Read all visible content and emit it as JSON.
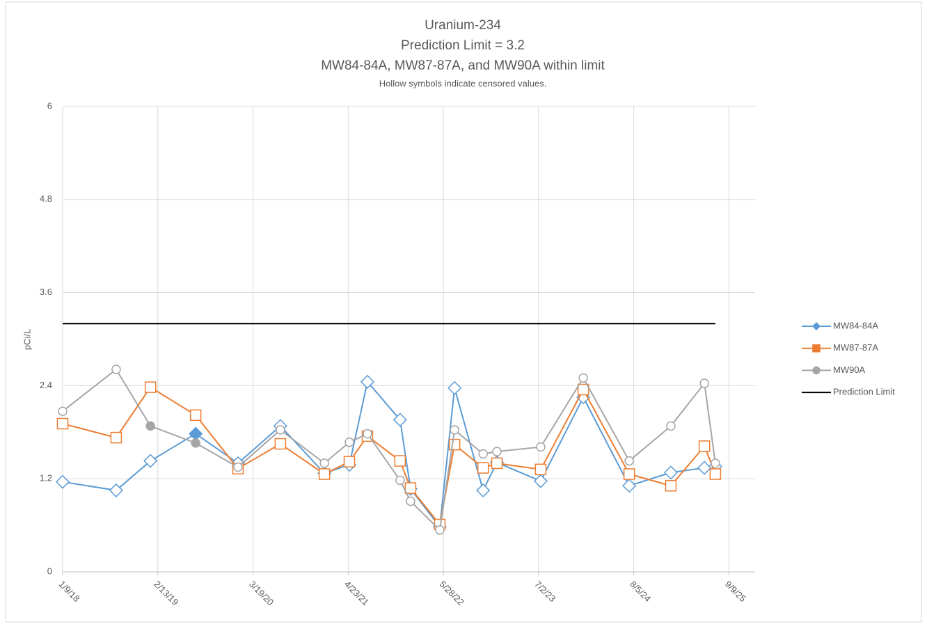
{
  "chart_data": {
    "type": "line",
    "title": "Uranium-234",
    "title_lines": [
      "Prediction Limit = 3.2",
      "MW84-84A, MW87-87A, and MW90A within limit"
    ],
    "subtitle": "Hollow symbols indicate censored values.",
    "y_label": "pCi/L",
    "x": [
      "2018-01-09",
      "2018-08-22",
      "2019-01-13",
      "2019-07-22",
      "2020-01-16",
      "2020-07-12",
      "2021-01-13",
      "2021-04-28",
      "2021-07-13",
      "2021-11-27",
      "2022-01-10",
      "2022-05-13",
      "2022-07-14",
      "2022-11-11",
      "2023-01-08",
      "2023-07-11",
      "2024-01-06",
      "2024-07-17",
      "2025-01-08",
      "2025-05-29",
      "2025-07-14"
    ],
    "xlim": [
      "2018-01-09",
      "2025-12-28"
    ],
    "xticks": [
      {
        "value": "2018-01-09",
        "label": "1/9/18"
      },
      {
        "value": "2019-02-13",
        "label": "2/13/19"
      },
      {
        "value": "2020-03-19",
        "label": "3/19/20"
      },
      {
        "value": "2021-04-23",
        "label": "4/23/21"
      },
      {
        "value": "2022-05-28",
        "label": "5/28/22"
      },
      {
        "value": "2023-07-02",
        "label": "7/2/23"
      },
      {
        "value": "2024-08-05",
        "label": "8/5/24"
      },
      {
        "value": "2025-09-09",
        "label": "9/9/25"
      }
    ],
    "ylim": [
      0,
      6
    ],
    "yticks": [
      0,
      1.2,
      2.4,
      3.6,
      4.8,
      6
    ],
    "grid": true,
    "legend": "right",
    "series": [
      {
        "name": "MW84-84A",
        "color": "#5b9bd5",
        "marker": "diamond",
        "values": [
          1.16,
          1.05,
          1.43,
          1.78,
          1.4,
          1.88,
          1.27,
          1.38,
          2.45,
          1.96,
          1.07,
          0.58,
          2.37,
          1.05,
          1.41,
          1.17,
          2.25,
          1.11,
          1.28,
          1.34,
          1.36
        ],
        "hollow": [
          true,
          true,
          true,
          false,
          true,
          true,
          true,
          true,
          true,
          true,
          true,
          true,
          true,
          true,
          true,
          true,
          true,
          true,
          true,
          true,
          true
        ]
      },
      {
        "name": "MW87-87A",
        "color": "#ed7d31",
        "marker": "square",
        "values": [
          1.91,
          1.73,
          2.38,
          2.02,
          1.33,
          1.65,
          1.26,
          1.42,
          1.75,
          1.43,
          1.08,
          0.61,
          1.64,
          1.34,
          1.4,
          1.32,
          2.35,
          1.26,
          1.11,
          1.62,
          1.26
        ],
        "hollow": [
          true,
          true,
          true,
          true,
          true,
          true,
          true,
          true,
          true,
          true,
          true,
          true,
          true,
          true,
          true,
          true,
          true,
          true,
          true,
          true,
          true
        ]
      },
      {
        "name": "MW90A",
        "color": "#a5a5a5",
        "marker": "circle",
        "values": [
          2.07,
          2.61,
          1.88,
          1.66,
          1.35,
          1.83,
          1.4,
          1.67,
          1.78,
          1.18,
          0.91,
          0.54,
          1.83,
          1.52,
          1.55,
          1.61,
          2.5,
          1.43,
          1.88,
          2.43,
          1.4
        ],
        "hollow": [
          true,
          true,
          false,
          false,
          true,
          true,
          true,
          true,
          true,
          true,
          true,
          true,
          true,
          true,
          true,
          true,
          true,
          true,
          true,
          true,
          true
        ]
      },
      {
        "name": "Prediction Limit",
        "color": "#000000",
        "marker": "none",
        "x": [
          "2018-01-09",
          "2025-07-14"
        ],
        "values": [
          3.2,
          3.2
        ]
      }
    ]
  }
}
